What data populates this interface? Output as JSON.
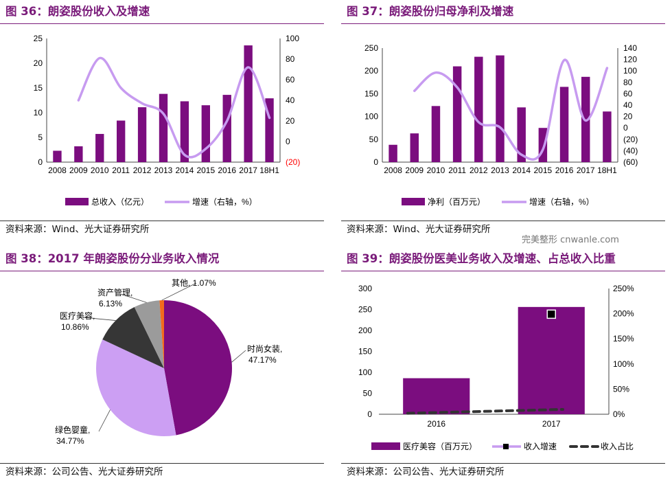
{
  "watermark": "完美整形 cnwanle.com",
  "colors": {
    "title": "#7a1b7a",
    "bar": "#7b0d7f",
    "line": "#c79bf0",
    "red_tick": "#ff0000",
    "dark": "#333333"
  },
  "panels": [
    {
      "title": "图 36：朗姿股份收入及增速",
      "source": "资料来源：Wind、光大证券研究所"
    },
    {
      "title": "图 37：朗姿股份归母净利及增速",
      "source": "资料来源：Wind、光大证券研究所"
    },
    {
      "title": "图 38：2017 年朗姿股份分业务收入情况",
      "source": "资料来源：公司公告、光大证券研究所"
    },
    {
      "title": "图 39：朗姿股份医美业务收入及增速、占总收入比重",
      "source": "资料来源：公司公告、光大证券研究所"
    }
  ],
  "chart_data": [
    {
      "type": "bar",
      "categories": [
        "2008",
        "2009",
        "2010",
        "2011",
        "2012",
        "2013",
        "2014",
        "2015",
        "2016",
        "2017",
        "18H1"
      ],
      "series": [
        {
          "name": "总收入（亿元）",
          "kind": "bar",
          "axis": "left",
          "values": [
            2.3,
            3.2,
            5.7,
            8.4,
            11.1,
            13.8,
            12.3,
            11.5,
            13.6,
            23.6,
            12.9
          ]
        },
        {
          "name": "增速（右轴，%）",
          "kind": "line",
          "axis": "right",
          "values": [
            null,
            40,
            81,
            52,
            37,
            27,
            -13,
            -7,
            20,
            72,
            23
          ]
        }
      ],
      "ylim": [
        0,
        25
      ],
      "yticks": [
        "0",
        "5",
        "10",
        "15",
        "20",
        "25"
      ],
      "y2lim": [
        -20,
        100
      ],
      "y2ticks": [
        "(20)",
        "0",
        "20",
        "40",
        "60",
        "80",
        "100"
      ],
      "legend": "bottom"
    },
    {
      "type": "bar",
      "categories": [
        "2008",
        "2009",
        "2010",
        "2011",
        "2012",
        "2013",
        "2014",
        "2015",
        "2016",
        "2017",
        "18H1"
      ],
      "series": [
        {
          "name": "净利（百万元）",
          "kind": "bar",
          "axis": "left",
          "values": [
            38,
            63,
            123,
            210,
            231,
            234,
            120,
            75,
            165,
            187,
            111
          ]
        },
        {
          "name": "增速（右轴，%）",
          "kind": "line",
          "axis": "right",
          "values": [
            null,
            65,
            97,
            71,
            10,
            1,
            -47,
            -38,
            119,
            13,
            105
          ]
        }
      ],
      "ylim": [
        0,
        250
      ],
      "yticks": [
        "0",
        "50",
        "100",
        "150",
        "200",
        "250"
      ],
      "y2lim": [
        -60,
        140
      ],
      "y2ticks": [
        "(60)",
        "(40)",
        "(20)",
        "0",
        "20",
        "40",
        "60",
        "80",
        "100",
        "120",
        "140"
      ],
      "legend": "bottom"
    },
    {
      "type": "pie",
      "slices": [
        {
          "label": "时尚女装",
          "value": 47.17,
          "value_label": "47.17%",
          "color": "#7b0d7f"
        },
        {
          "label": "绿色婴童",
          "value": 34.77,
          "value_label": "34.77%",
          "color": "#cc9ff3"
        },
        {
          "label": "医疗美容",
          "value": 10.86,
          "value_label": "10.86%",
          "color": "#363636"
        },
        {
          "label": "资产管理",
          "value": 6.13,
          "value_label": "6.13%",
          "color": "#9b9b9b"
        },
        {
          "label": "其他",
          "value": 1.07,
          "value_label": "1.07%",
          "color": "#f26b1d"
        }
      ]
    },
    {
      "type": "bar",
      "categories": [
        "2016",
        "2017"
      ],
      "series": [
        {
          "name": "医疗美容（百万元）",
          "kind": "bar",
          "axis": "left",
          "values": [
            86,
            256
          ]
        },
        {
          "name": "收入增速",
          "kind": "marker",
          "axis": "right",
          "values": [
            null,
            199
          ]
        },
        {
          "name": "收入占比",
          "kind": "dashed",
          "axis": "right",
          "values": [
            6,
            11
          ]
        }
      ],
      "ylim": [
        0,
        300
      ],
      "yticks": [
        "0",
        "50",
        "100",
        "150",
        "200",
        "250",
        "300"
      ],
      "y2lim": [
        0,
        250
      ],
      "y2ticks": [
        "0%",
        "50%",
        "100%",
        "150%",
        "200%",
        "250%"
      ],
      "legend": "bottom"
    }
  ]
}
